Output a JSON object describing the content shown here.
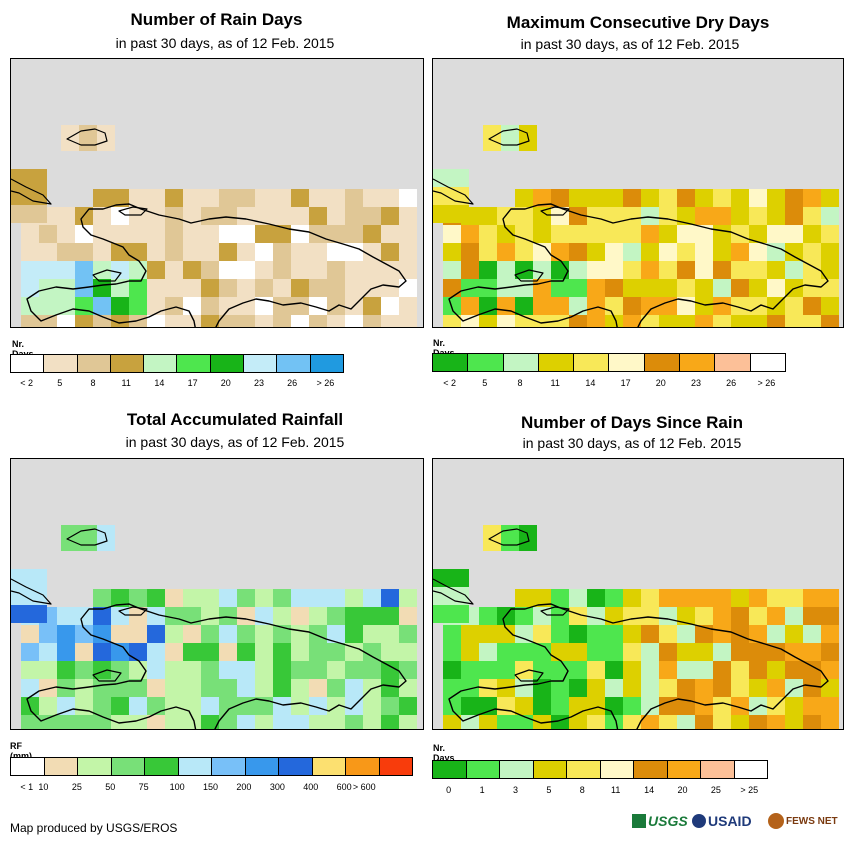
{
  "panels": [
    {
      "title": "Number of Rain Days",
      "subtitle": "in past 30 days, as of 12 Feb. 2015",
      "legend_title": "Nr. Days",
      "colors": [
        "#ffffff",
        "#f2e0c4",
        "#e0c796",
        "#c8a23e",
        "#c3f5c3",
        "#4ee64e",
        "#18b418",
        "#c4ecf8",
        "#72c2f4",
        "#209ae0"
      ],
      "labels": [
        "< 2",
        "5",
        "8",
        "11",
        "14",
        "17",
        "20",
        "23",
        "26",
        "> 26"
      ],
      "label_mode": "center"
    },
    {
      "title": "Maximum Consecutive Dry Days",
      "subtitle": "in past 30 days, as of 12 Feb. 2015",
      "legend_title": "Nr. Days",
      "colors": [
        "#18b418",
        "#4ee64e",
        "#c3f5c3",
        "#ddd000",
        "#f8e858",
        "#fff8c8",
        "#dc8c0a",
        "#f8a818",
        "#fcc098",
        "#ffffff"
      ],
      "labels": [
        "< 2",
        "5",
        "8",
        "11",
        "14",
        "17",
        "20",
        "23",
        "26",
        "> 26"
      ],
      "label_mode": "center"
    },
    {
      "title": "Total Accumulated Rainfall",
      "subtitle": "in past 30 days, as of 12 Feb. 2015",
      "legend_title": "RF (mm)",
      "colors": [
        "#ffffff",
        "#f2dcb4",
        "#c3f5a8",
        "#78e078",
        "#38c838",
        "#b8e8f8",
        "#78c0f8",
        "#3898ec",
        "#2468dc",
        "#fce070",
        "#f89818",
        "#f83c0c"
      ],
      "labels": [
        "< 1",
        "10",
        "25",
        "50",
        "75",
        "100",
        "150",
        "200",
        "300",
        "400",
        "600",
        "> 600"
      ],
      "label_mode": "end"
    },
    {
      "title": "Number of Days Since Rain",
      "subtitle": "in past 30 days, as of 12 Feb. 2015",
      "legend_title": "Nr. Days",
      "colors": [
        "#18b418",
        "#4ee64e",
        "#c3f5c3",
        "#ddd000",
        "#f8e858",
        "#fff8c8",
        "#dc8c0a",
        "#f8a818",
        "#fcc098",
        "#ffffff"
      ],
      "labels": [
        "0",
        "1",
        "3",
        "5",
        "8",
        "11",
        "14",
        "20",
        "25",
        "> 25"
      ],
      "label_mode": "center"
    }
  ],
  "footer": "Map produced by USGS/EROS",
  "logos": {
    "usgs": "USGS",
    "usaid": "USAID",
    "fews": "FEWS NET"
  }
}
